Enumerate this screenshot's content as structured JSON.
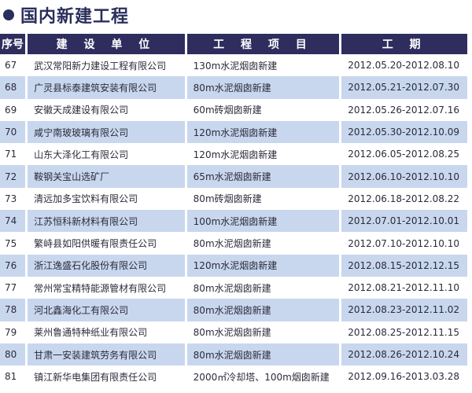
{
  "title": "国内新建工程",
  "columns": [
    "序号",
    "建 设 单 位",
    "工 程 项 目",
    "工 期"
  ],
  "rows": [
    [
      "67",
      "武汉常阳新力建设工程有限公司",
      "130m水泥烟囱新建",
      "2012.05.20-2012.08.10"
    ],
    [
      "68",
      "广灵县标泰建筑安装有限公司",
      "80m水泥烟囱新建",
      "2012.05.21-2012.07.30"
    ],
    [
      "69",
      "安徽天成建设有限公司",
      "60m砖烟囱新建",
      "2012.05.26-2012.07.16"
    ],
    [
      "70",
      "咸宁南玻玻璃有限公司",
      "120m水泥烟囱新建",
      "2012.05.30-2012.10.09"
    ],
    [
      "71",
      "山东大泽化工有限公司",
      "120m水泥烟囱新建",
      "2012.06.05-2012.08.25"
    ],
    [
      "72",
      "鞍钢关宝山选矿厂",
      "65m水泥烟囱新建",
      "2012.06.10-2012.10.10"
    ],
    [
      "73",
      "清远加多宝饮料有限公司",
      "80m砖烟囱新建",
      "2012.06.18-2012.08.22"
    ],
    [
      "74",
      "江苏恒科新材料有限公司",
      "100m水泥烟囱新建",
      "2012.07.01-2012.10.01"
    ],
    [
      "75",
      "繁峙县如阳供暖有限责任公司",
      "80m水泥烟囱新建",
      "2012.07.10-2012.10.10"
    ],
    [
      "76",
      "浙江逸盛石化股份有限公司",
      "120m水泥烟囱新建",
      "2012.08.15-2012.12.15"
    ],
    [
      "77",
      "常州常宝精特能源管材有限公司",
      "80m水泥烟囱新建",
      "2012.08.21-2012.11.10"
    ],
    [
      "78",
      "河北鑫海化工有限公司",
      "80m水泥烟囱新建",
      "2012.08.23-2012.11.02"
    ],
    [
      "79",
      "莱州鲁通特种纸业有限公司",
      "80m水泥烟囱新建",
      "2012.08.25-2012.11.15"
    ],
    [
      "80",
      "甘肃一安装建筑劳务有限公司",
      "80m水泥烟囱新建",
      "2012.08.26-2012.10.24"
    ],
    [
      "81",
      "镇江新华电集团有限责任公司",
      "2000㎡冷却塔、100m烟囱新建",
      "2012.09.16-2013.03.28"
    ]
  ]
}
